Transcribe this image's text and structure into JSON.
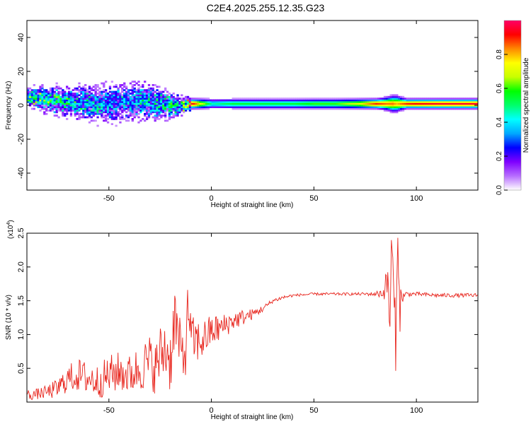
{
  "figure": {
    "title": "C2E4.2025.255.12.35.G23"
  },
  "colors": {
    "snr_line": "#e8261e",
    "colormap": [
      "#ffffff",
      "#b76dff",
      "#7f00ff",
      "#0000ff",
      "#00a8ff",
      "#00ffff",
      "#00ff6a",
      "#00ff00",
      "#c8ff00",
      "#ffff00",
      "#ff8800",
      "#ff0000",
      "#ff0066"
    ]
  },
  "chart_data": [
    {
      "type": "heatmap",
      "xlabel": "Height of straight line (km)",
      "ylabel": "Frequency (Hz)",
      "xlim": [
        -90,
        130
      ],
      "ylim": [
        -50,
        50
      ],
      "xticks": [
        -50,
        0,
        50,
        100
      ],
      "yticks": [
        -40,
        -20,
        0,
        20,
        40
      ],
      "grid": false,
      "colorbar": {
        "label": "Normalized spectral amplitude",
        "range": [
          0,
          1
        ],
        "ticks": [
          "0.0",
          "0.2",
          "0.4",
          "0.6",
          "0.8"
        ]
      },
      "ridge": {
        "description_x": [
          -90,
          -80,
          -70,
          -60,
          -50,
          -45,
          -40,
          -35,
          -30,
          -25,
          -20,
          -15,
          -10,
          0,
          10,
          20,
          30,
          40,
          50,
          60,
          70,
          80,
          85,
          88,
          90,
          92,
          95,
          100,
          110,
          120,
          130
        ],
        "center_freq": [
          5,
          3,
          2,
          1,
          1,
          2,
          2,
          3,
          2,
          1,
          0,
          0,
          1,
          1,
          1,
          1,
          1,
          1,
          1,
          1,
          1,
          1,
          1,
          1,
          1,
          1,
          1,
          1,
          1,
          1,
          1
        ],
        "amplitude": [
          0.55,
          0.5,
          0.45,
          0.4,
          0.35,
          0.35,
          0.35,
          0.4,
          0.4,
          0.45,
          0.45,
          0.5,
          0.95,
          0.45,
          0.55,
          0.55,
          0.55,
          0.55,
          0.6,
          0.6,
          0.7,
          0.9,
          0.85,
          0.85,
          0.8,
          0.85,
          0.9,
          0.92,
          0.95,
          0.95,
          0.95
        ],
        "spread_hz": [
          5,
          7,
          8,
          9,
          10,
          10,
          10,
          10,
          9,
          8,
          7,
          5,
          3,
          3,
          3,
          3,
          3,
          3,
          3,
          3,
          3,
          3,
          4,
          5,
          5,
          4,
          3,
          3,
          3,
          3,
          3
        ]
      }
    },
    {
      "type": "line",
      "xlabel": "Height of straight line (km)",
      "ylabel": "SNR (10 * v/v)",
      "yscale_label": "(x10",
      "yscale_exp": "4",
      "xlim": [
        -90,
        130
      ],
      "ylim": [
        0,
        2.5
      ],
      "xticks": [
        -50,
        0,
        50,
        100
      ],
      "yticks": [
        0.5,
        1.0,
        1.5,
        2.0,
        2.5
      ],
      "grid": false,
      "series": [
        {
          "x": [
            -90,
            -85,
            -80,
            -75,
            -70,
            -65,
            -60,
            -55,
            -50,
            -45,
            -40,
            -35,
            -30,
            -27,
            -25,
            -22,
            -20,
            -18,
            -15,
            -13,
            -11,
            -10,
            -8,
            -5,
            0,
            5,
            10,
            15,
            20,
            25,
            30,
            35,
            40,
            50,
            60,
            70,
            80,
            84,
            86,
            87,
            88,
            89,
            90,
            91,
            92,
            93,
            95,
            100,
            110,
            120,
            130
          ],
          "values": [
            0.1,
            0.12,
            0.15,
            0.2,
            0.35,
            0.4,
            0.35,
            0.3,
            0.4,
            0.45,
            0.4,
            0.5,
            0.6,
            0.5,
            0.7,
            0.8,
            0.6,
            1.3,
            0.7,
            0.7,
            1.5,
            0.9,
            0.9,
            0.9,
            1.05,
            1.1,
            1.2,
            1.25,
            1.3,
            1.38,
            1.5,
            1.55,
            1.58,
            1.6,
            1.6,
            1.6,
            1.6,
            1.62,
            1.8,
            1.2,
            2.4,
            1.5,
            0.8,
            2.5,
            1.4,
            1.55,
            1.6,
            1.6,
            1.58,
            1.58,
            1.58
          ],
          "noise": [
            0.08,
            0.08,
            0.1,
            0.15,
            0.2,
            0.25,
            0.25,
            0.25,
            0.3,
            0.3,
            0.3,
            0.35,
            0.4,
            0.4,
            0.45,
            0.5,
            0.5,
            0.5,
            0.45,
            0.45,
            0.45,
            0.4,
            0.35,
            0.3,
            0.25,
            0.2,
            0.15,
            0.12,
            0.08,
            0.05,
            0.03,
            0.03,
            0.02,
            0.02,
            0.02,
            0.02,
            0.03,
            0.1,
            0.3,
            0.5,
            0.3,
            0.5,
            0.4,
            0.3,
            0.4,
            0.1,
            0.04,
            0.03,
            0.03,
            0.03,
            0.03
          ]
        }
      ]
    }
  ]
}
